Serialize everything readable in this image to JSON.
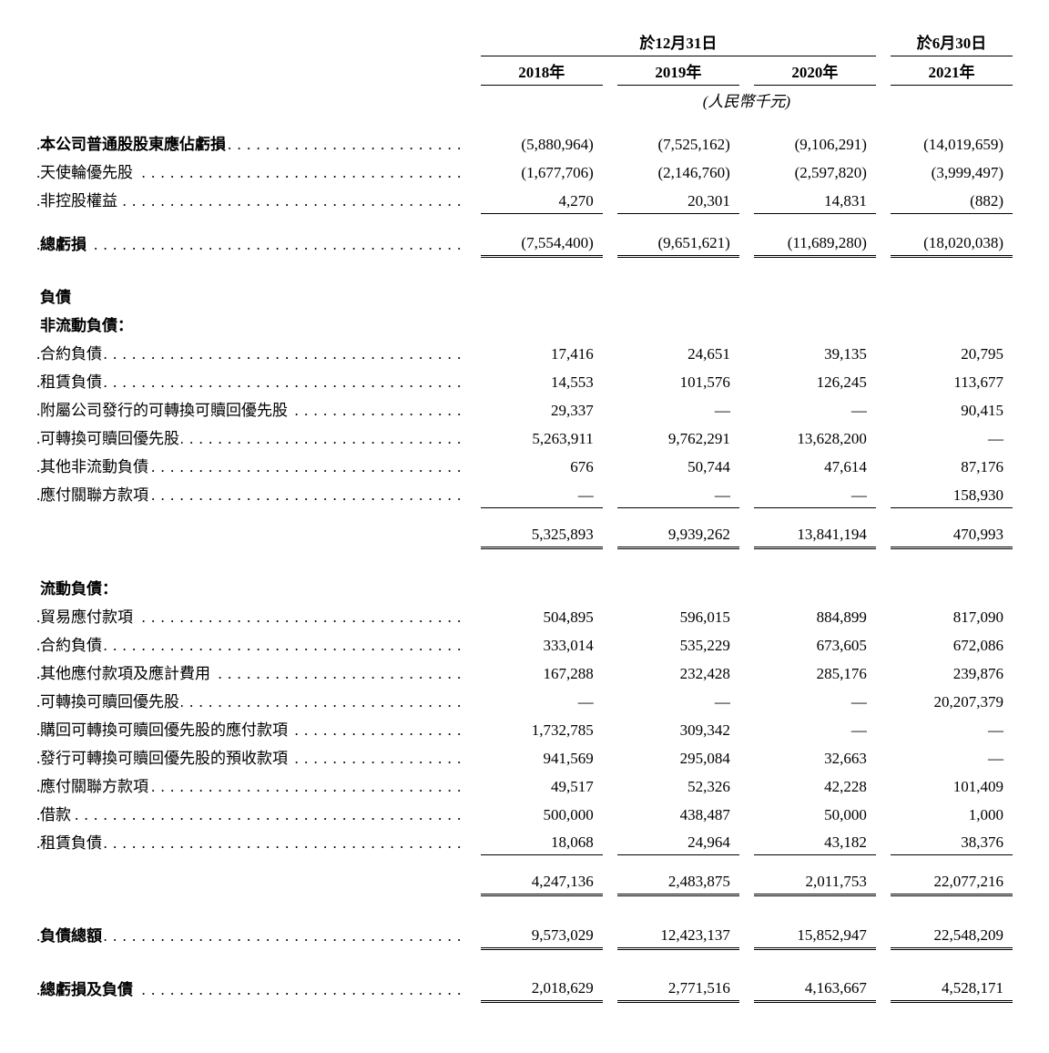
{
  "header": {
    "period1": "於12月31日",
    "period2": "於6月30日",
    "years": [
      "2018年",
      "2019年",
      "2020年",
      "2021年"
    ],
    "unit": "(人民幣千元)"
  },
  "sections": {
    "equity": {
      "rows": [
        {
          "label": "本公司普通股股東應佔虧損",
          "bold": true,
          "vals": [
            "(5,880,964)",
            "(7,525,162)",
            "(9,106,291)",
            "(14,019,659)"
          ]
        },
        {
          "label": "天使輪優先股",
          "vals": [
            "(1,677,706)",
            "(2,146,760)",
            "(2,597,820)",
            "(3,999,497)"
          ]
        },
        {
          "label": "非控股權益",
          "vals": [
            "4,270",
            "20,301",
            "14,831",
            "(882)"
          ]
        }
      ],
      "total": {
        "label": "總虧損",
        "bold": true,
        "vals": [
          "(7,554,400)",
          "(9,651,621)",
          "(11,689,280)",
          "(18,020,038)"
        ]
      }
    },
    "liabilities_heading": "負債",
    "noncurrent": {
      "heading": "非流動負債：",
      "rows": [
        {
          "label": "合約負債",
          "vals": [
            "17,416",
            "24,651",
            "39,135",
            "20,795"
          ]
        },
        {
          "label": "租賃負債",
          "vals": [
            "14,553",
            "101,576",
            "126,245",
            "113,677"
          ]
        },
        {
          "label": "附屬公司發行的可轉換可贖回優先股",
          "vals": [
            "29,337",
            "—",
            "—",
            "90,415"
          ]
        },
        {
          "label": "可轉換可贖回優先股",
          "vals": [
            "5,263,911",
            "9,762,291",
            "13,628,200",
            "—"
          ]
        },
        {
          "label": "其他非流動負債",
          "vals": [
            "676",
            "50,744",
            "47,614",
            "87,176"
          ]
        },
        {
          "label": "應付關聯方款項",
          "vals": [
            "—",
            "—",
            "—",
            "158,930"
          ]
        }
      ],
      "subtotal": {
        "vals": [
          "5,325,893",
          "9,939,262",
          "13,841,194",
          "470,993"
        ]
      }
    },
    "current": {
      "heading": "流動負債：",
      "rows": [
        {
          "label": "貿易應付款項",
          "vals": [
            "504,895",
            "596,015",
            "884,899",
            "817,090"
          ]
        },
        {
          "label": "合約負債",
          "vals": [
            "333,014",
            "535,229",
            "673,605",
            "672,086"
          ]
        },
        {
          "label": "其他應付款項及應計費用",
          "vals": [
            "167,288",
            "232,428",
            "285,176",
            "239,876"
          ]
        },
        {
          "label": "可轉換可贖回優先股",
          "vals": [
            "—",
            "—",
            "—",
            "20,207,379"
          ]
        },
        {
          "label": "購回可轉換可贖回優先股的應付款項",
          "vals": [
            "1,732,785",
            "309,342",
            "—",
            "—"
          ]
        },
        {
          "label": "發行可轉換可贖回優先股的預收款項",
          "vals": [
            "941,569",
            "295,084",
            "32,663",
            "—"
          ]
        },
        {
          "label": "應付關聯方款項",
          "vals": [
            "49,517",
            "52,326",
            "42,228",
            "101,409"
          ]
        },
        {
          "label": "借款",
          "vals": [
            "500,000",
            "438,487",
            "50,000",
            "1,000"
          ]
        },
        {
          "label": "租賃負債",
          "vals": [
            "18,068",
            "24,964",
            "43,182",
            "38,376"
          ]
        }
      ],
      "subtotal": {
        "vals": [
          "4,247,136",
          "2,483,875",
          "2,011,753",
          "22,077,216"
        ]
      }
    },
    "total_liabilities": {
      "label": "負債總額",
      "bold": true,
      "vals": [
        "9,573,029",
        "12,423,137",
        "15,852,947",
        "22,548,209"
      ]
    },
    "total_deficit_liabilities": {
      "label": "總虧損及負債",
      "bold": true,
      "vals": [
        "2,018,629",
        "2,771,516",
        "4,163,667",
        "4,528,171"
      ]
    }
  },
  "style": {
    "font_family": "Times New Roman / SimSun",
    "font_size_pt": 13,
    "text_color": "#000000",
    "background_color": "#ffffff",
    "border_color": "#000000",
    "col_widths_pct": {
      "label": 44,
      "gap": 1.5,
      "value": 12.5
    },
    "double_rule": "3px double",
    "single_rule": "1px solid"
  }
}
